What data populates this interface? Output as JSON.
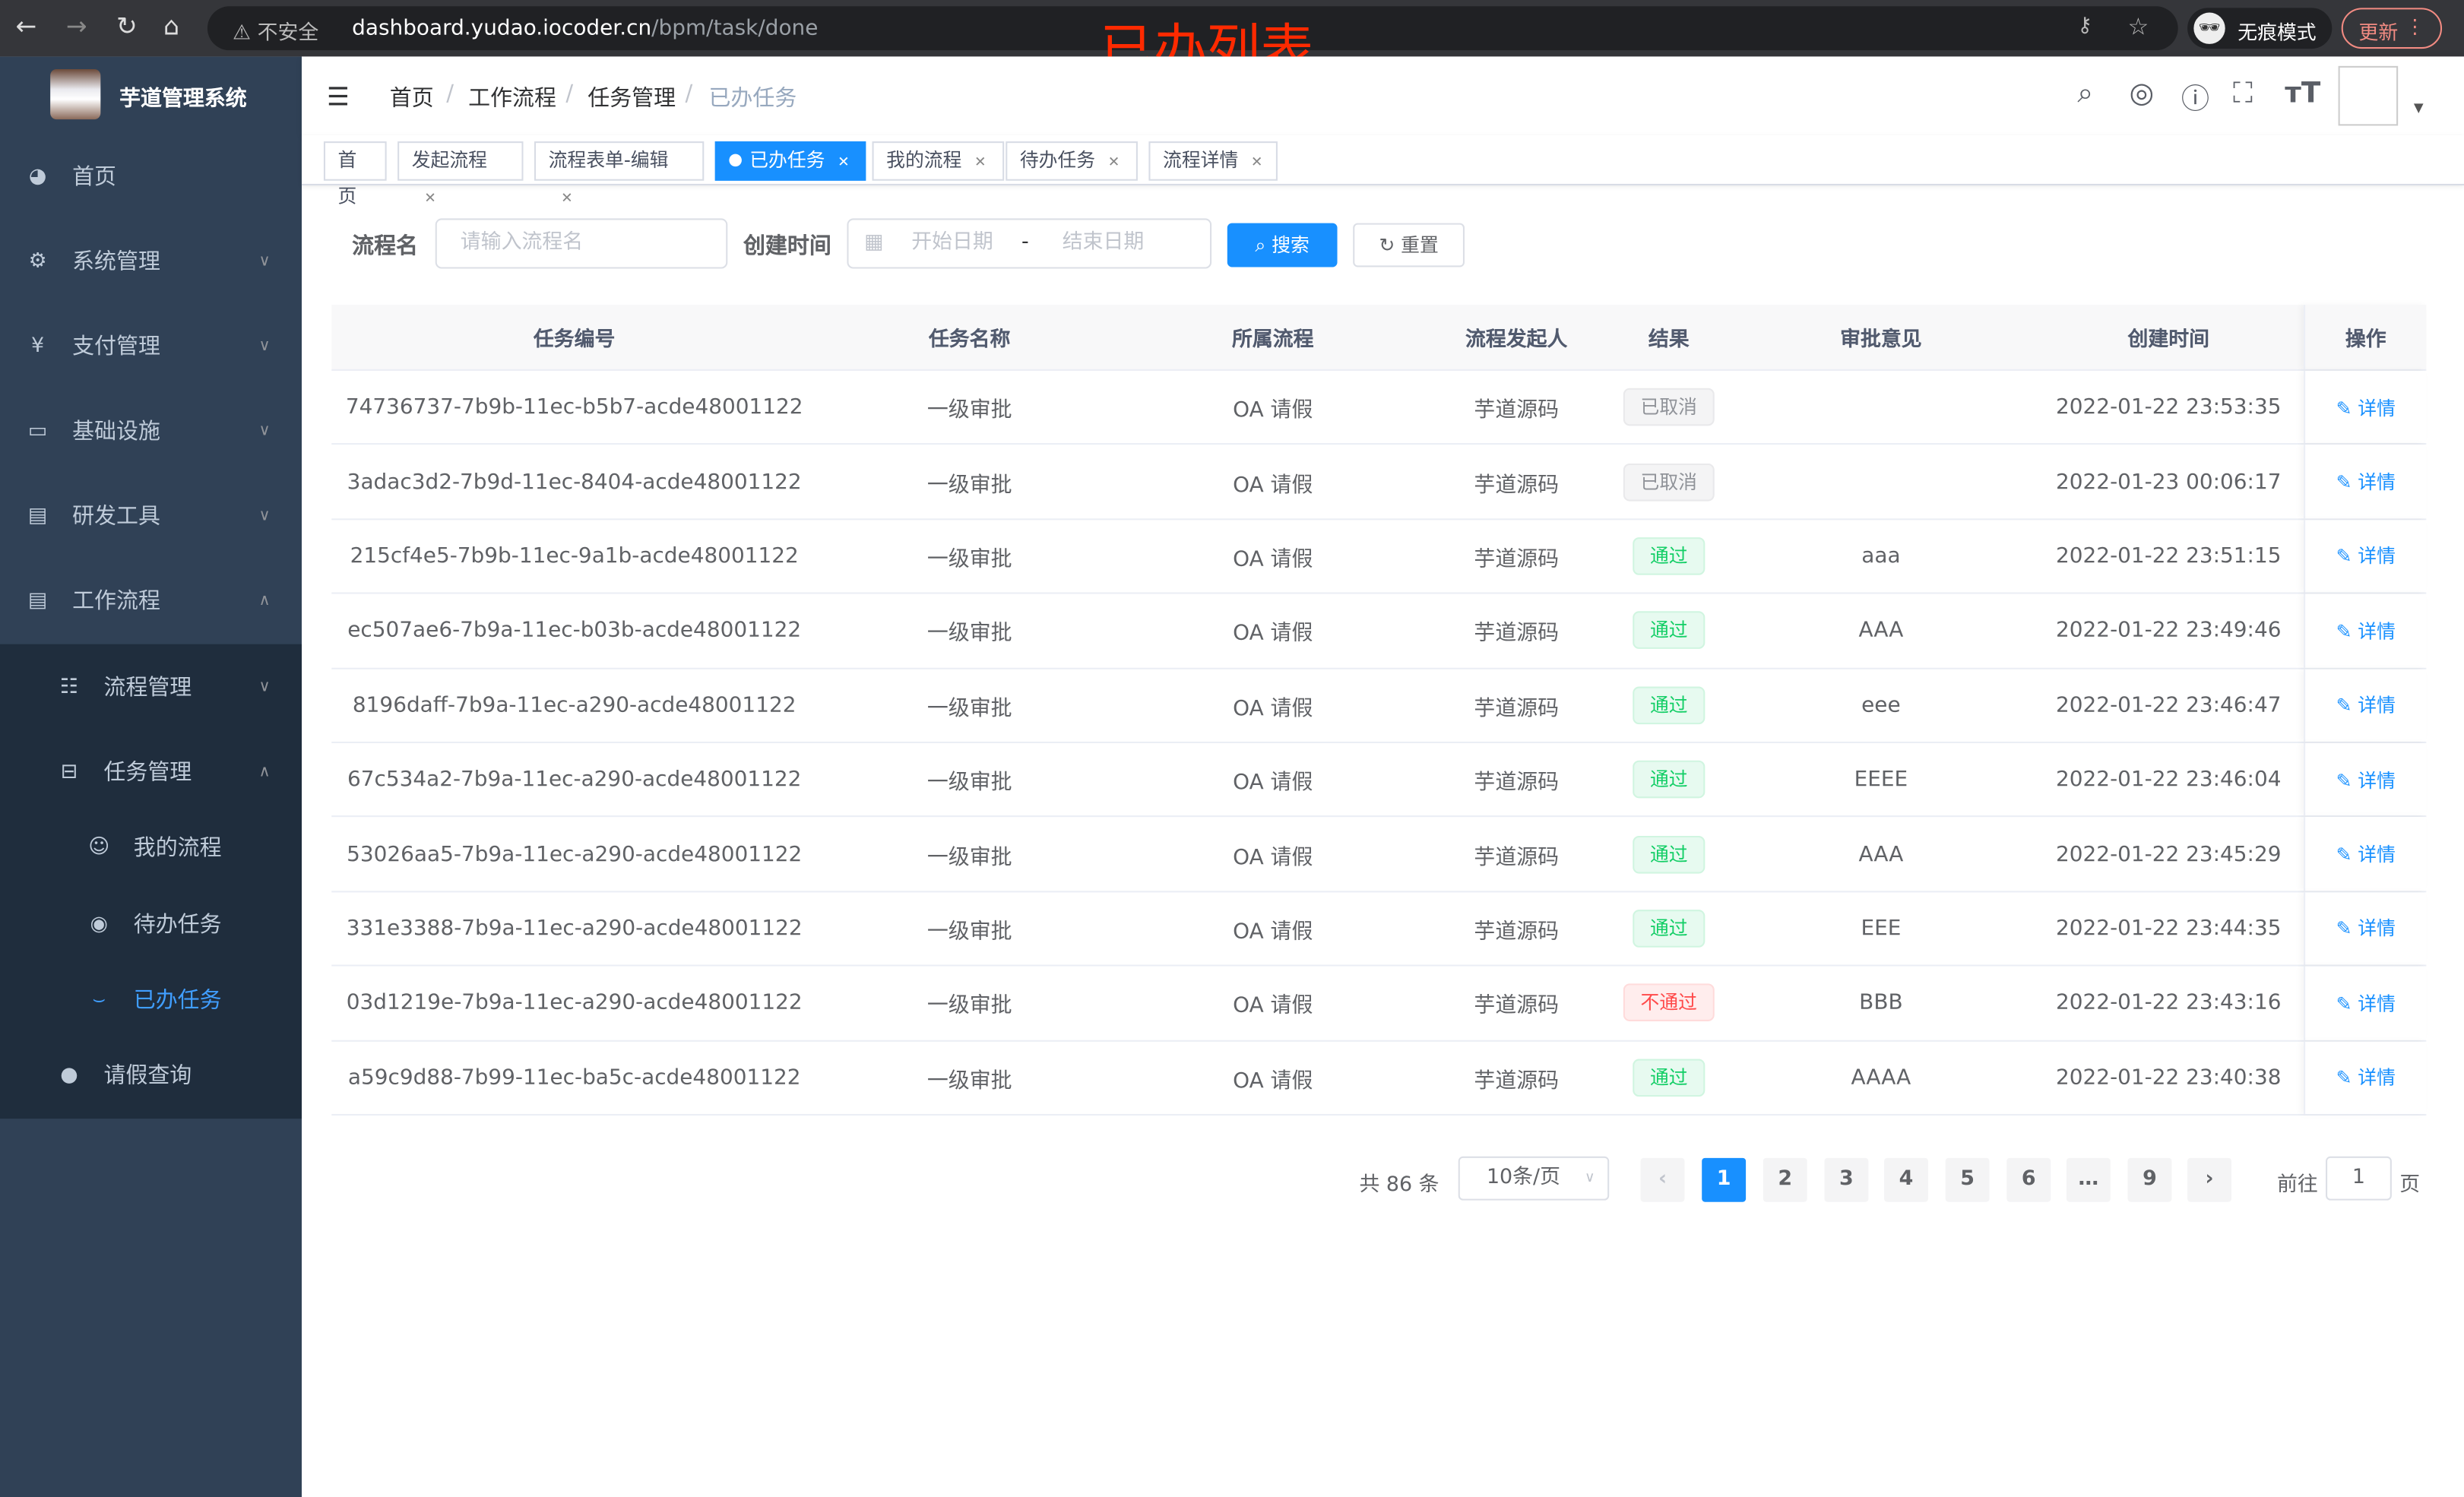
{
  "browser": {
    "insecure": "不安全",
    "url_host": "dashboard.yudao.iocoder.cn",
    "url_path": "/bpm/task/done",
    "incognito": "无痕模式",
    "update": "更新"
  },
  "overlay_title": "已办列表",
  "sidebar": {
    "title": "芋道管理系统",
    "items": [
      {
        "label": "首页",
        "icon": "dashboard-icon"
      },
      {
        "label": "系统管理",
        "icon": "gear-icon"
      },
      {
        "label": "支付管理",
        "icon": "yen-icon"
      },
      {
        "label": "基础设施",
        "icon": "monitor-icon"
      },
      {
        "label": "研发工具",
        "icon": "toolbox-icon"
      },
      {
        "label": "工作流程",
        "icon": "toolbox-icon"
      },
      {
        "label": "流程管理",
        "icon": "list-icon"
      },
      {
        "label": "任务管理",
        "icon": "tree-icon"
      },
      {
        "label": "我的流程",
        "icon": "people-icon"
      },
      {
        "label": "待办任务",
        "icon": "eye-icon"
      },
      {
        "label": "已办任务",
        "icon": "eye-closed-icon"
      },
      {
        "label": "请假查询",
        "icon": "user-icon"
      }
    ],
    "active": "已办任务"
  },
  "breadcrumb": [
    "首页",
    "工作流程",
    "任务管理",
    "已办任务"
  ],
  "tags": [
    "首页",
    "发起流程",
    "流程表单-编辑",
    "已办任务",
    "我的流程",
    "待办任务",
    "流程详情"
  ],
  "active_tag": "已办任务",
  "search": {
    "name_label": "流程名",
    "name_placeholder": "请输入流程名",
    "time_label": "创建时间",
    "start_placeholder": "开始日期",
    "separator": "-",
    "end_placeholder": "结束日期",
    "search_btn": "搜索",
    "reset_btn": "重置"
  },
  "table": {
    "headers": [
      "任务编号",
      "任务名称",
      "所属流程",
      "流程发起人",
      "结果",
      "审批意见",
      "创建时间",
      "操作"
    ],
    "action_label": "详情",
    "rows": [
      {
        "id": "74736737-7b9b-11ec-b5b7-acde48001122",
        "name": "一级审批",
        "process": "OA 请假",
        "starter": "芋道源码",
        "result": "已取消",
        "status": "cancel",
        "comment": "",
        "time": "2022-01-22 23:53:35"
      },
      {
        "id": "3adac3d2-7b9d-11ec-8404-acde48001122",
        "name": "一级审批",
        "process": "OA 请假",
        "starter": "芋道源码",
        "result": "已取消",
        "status": "cancel",
        "comment": "",
        "time": "2022-01-23 00:06:17"
      },
      {
        "id": "215cf4e5-7b9b-11ec-9a1b-acde48001122",
        "name": "一级审批",
        "process": "OA 请假",
        "starter": "芋道源码",
        "result": "通过",
        "status": "pass",
        "comment": "aaa",
        "time": "2022-01-22 23:51:15"
      },
      {
        "id": "ec507ae6-7b9a-11ec-b03b-acde48001122",
        "name": "一级审批",
        "process": "OA 请假",
        "starter": "芋道源码",
        "result": "通过",
        "status": "pass",
        "comment": "AAA",
        "time": "2022-01-22 23:49:46"
      },
      {
        "id": "8196daff-7b9a-11ec-a290-acde48001122",
        "name": "一级审批",
        "process": "OA 请假",
        "starter": "芋道源码",
        "result": "通过",
        "status": "pass",
        "comment": "eee",
        "time": "2022-01-22 23:46:47"
      },
      {
        "id": "67c534a2-7b9a-11ec-a290-acde48001122",
        "name": "一级审批",
        "process": "OA 请假",
        "starter": "芋道源码",
        "result": "通过",
        "status": "pass",
        "comment": "EEEE",
        "time": "2022-01-22 23:46:04"
      },
      {
        "id": "53026aa5-7b9a-11ec-a290-acde48001122",
        "name": "一级审批",
        "process": "OA 请假",
        "starter": "芋道源码",
        "result": "通过",
        "status": "pass",
        "comment": "AAA",
        "time": "2022-01-22 23:45:29"
      },
      {
        "id": "331e3388-7b9a-11ec-a290-acde48001122",
        "name": "一级审批",
        "process": "OA 请假",
        "starter": "芋道源码",
        "result": "通过",
        "status": "pass",
        "comment": "EEE",
        "time": "2022-01-22 23:44:35"
      },
      {
        "id": "03d1219e-7b9a-11ec-a290-acde48001122",
        "name": "一级审批",
        "process": "OA 请假",
        "starter": "芋道源码",
        "result": "不通过",
        "status": "fail",
        "comment": "BBB",
        "time": "2022-01-22 23:43:16"
      },
      {
        "id": "a59c9d88-7b99-11ec-ba5c-acde48001122",
        "name": "一级审批",
        "process": "OA 请假",
        "starter": "芋道源码",
        "result": "通过",
        "status": "pass",
        "comment": "AAAA",
        "time": "2022-01-22 23:40:38"
      }
    ]
  },
  "pagination": {
    "total": "共 86 条",
    "page_size": "10条/页",
    "pages": [
      "1",
      "2",
      "3",
      "4",
      "5",
      "6",
      "…",
      "9"
    ],
    "current": "1",
    "goto_label": "前往",
    "goto_value": "1",
    "page_suffix": "页"
  },
  "colors": {
    "sidebar": "#304156",
    "submenu": "#1f2d3d",
    "primary": "#1890ff",
    "active_menu": "#409eff"
  }
}
